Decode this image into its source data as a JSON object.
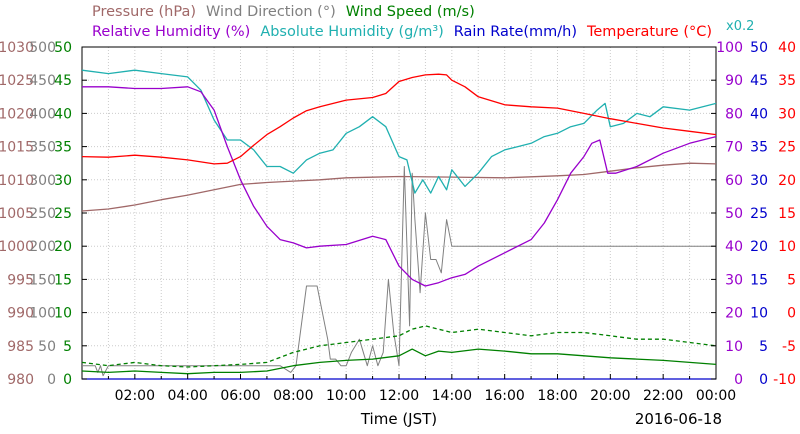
{
  "chart_data": {
    "type": "line",
    "date_label": "2016-06-18",
    "xlabel": "Time (JST)",
    "x_ticks": [
      "02:00",
      "04:00",
      "06:00",
      "08:00",
      "10:00",
      "12:00",
      "14:00",
      "16:00",
      "18:00",
      "20:00",
      "22:00",
      "00:00"
    ],
    "xlim_hours": [
      0,
      24
    ],
    "grid": true,
    "legend": {
      "row1": [
        {
          "key": "pressure",
          "label": "Pressure (hPa)",
          "color": "#a06868"
        },
        {
          "key": "wind_dir",
          "label": "Wind Direction (°)",
          "color": "#808080"
        },
        {
          "key": "wind_speed",
          "label": "Wind Speed (m/s)",
          "color": "#008000"
        }
      ],
      "row2": [
        {
          "key": "rh",
          "label": "Relative Humidity (%)",
          "color": "#9900cc"
        },
        {
          "key": "ah",
          "label": "Absolute Humidity (g/m³)",
          "color": "#20b0b0",
          "suffix": "x0.2"
        },
        {
          "key": "rain",
          "label": "Rain Rate(mm/h)",
          "color": "#0000cc"
        },
        {
          "key": "temp",
          "label": "Temperature (°C)",
          "color": "#ff0000"
        }
      ]
    },
    "axes": {
      "pressure": {
        "ticks": [
          "1030",
          "1025",
          "1020",
          "1015",
          "1010",
          "1005",
          "1000",
          "995",
          "990",
          "985",
          "980"
        ],
        "range": [
          980,
          1030
        ],
        "color": "#a06868"
      },
      "wind_dir": {
        "ticks": [
          "500",
          "450",
          "400",
          "350",
          "300",
          "250",
          "200",
          "150",
          "100",
          "50",
          "0"
        ],
        "range": [
          0,
          500
        ],
        "color": "#808080"
      },
      "wind_speed": {
        "ticks": [
          "50",
          "45",
          "40",
          "35",
          "30",
          "25",
          "20",
          "15",
          "10",
          "5",
          "0"
        ],
        "range": [
          0,
          50
        ],
        "color": "#008000"
      },
      "rh": {
        "ticks": [
          "100",
          "90",
          "80",
          "70",
          "60",
          "50",
          "40",
          "30",
          "20",
          "10",
          "0"
        ],
        "range": [
          0,
          100
        ],
        "color": "#9900cc"
      },
      "rain": {
        "ticks": [
          "50",
          "45",
          "40",
          "35",
          "30",
          "25",
          "20",
          "15",
          "10",
          "5",
          "0"
        ],
        "range": [
          0,
          50
        ],
        "color": "#0000cc"
      },
      "temp": {
        "ticks": [
          "40",
          "35",
          "30",
          "25",
          "20",
          "15",
          "10",
          "5",
          "0",
          "-5",
          "-10"
        ],
        "range": [
          -10,
          40
        ],
        "color": "#ff0000"
      }
    },
    "series": [
      {
        "key": "temp",
        "axis": "temp",
        "color": "#ff0000",
        "x": [
          0,
          1,
          2,
          3,
          4,
          5,
          5.5,
          6,
          6.5,
          7,
          7.5,
          8,
          8.5,
          9,
          10,
          11,
          11.5,
          12,
          12.5,
          13,
          13.5,
          13.8,
          14,
          14.5,
          15,
          16,
          17,
          18,
          19,
          20,
          21,
          22,
          23,
          24
        ],
        "y": [
          23.5,
          23.4,
          23.7,
          23.4,
          23.0,
          22.4,
          22.5,
          23.5,
          25.2,
          26.8,
          28.0,
          29.3,
          30.4,
          31.0,
          32.0,
          32.4,
          33.0,
          34.8,
          35.4,
          35.8,
          35.9,
          35.8,
          35.0,
          34.0,
          32.5,
          31.3,
          31.0,
          30.8,
          30.0,
          29.2,
          28.5,
          27.8,
          27.3,
          26.8
        ]
      },
      {
        "key": "rh",
        "axis": "rh",
        "color": "#9900cc",
        "x": [
          0,
          1,
          2,
          3,
          4,
          4.5,
          5,
          5.5,
          6,
          6.5,
          7,
          7.5,
          8,
          8.5,
          9,
          10,
          11,
          11.5,
          12,
          12.5,
          13,
          13.5,
          14,
          14.5,
          15,
          16,
          17,
          17.5,
          18,
          18.5,
          19,
          19.3,
          19.6,
          19.9,
          20.2,
          21,
          22,
          23,
          24
        ],
        "y": [
          88,
          88,
          87.5,
          87.5,
          88,
          86.5,
          81,
          70,
          60,
          52,
          46,
          42,
          41,
          39.5,
          40,
          40.5,
          43,
          42,
          34,
          30,
          28,
          29,
          30.5,
          31.5,
          34,
          38,
          42,
          47,
          54,
          62,
          67,
          71,
          72,
          62,
          62,
          64,
          68,
          71,
          73
        ]
      },
      {
        "key": "ah",
        "axis": "rh",
        "color": "#20b0b0",
        "x": [
          0,
          1,
          2,
          3,
          4,
          4.5,
          5,
          5.5,
          6,
          6.5,
          7,
          7.5,
          8,
          8.5,
          9,
          9.5,
          10,
          10.5,
          11,
          11.5,
          12,
          12.3,
          12.6,
          12.9,
          13.2,
          13.5,
          13.8,
          14,
          14.5,
          15,
          15.5,
          16,
          16.5,
          17,
          17.5,
          18,
          18.5,
          19,
          19.5,
          19.8,
          20,
          20.5,
          21,
          21.5,
          22,
          23,
          24
        ],
        "y": [
          93,
          92,
          93,
          92,
          91,
          87,
          78,
          72,
          72,
          69,
          64,
          64,
          62,
          66,
          68,
          69,
          74,
          76,
          79,
          76,
          67,
          66,
          56,
          60,
          56,
          61,
          57,
          63,
          58,
          62,
          67,
          69,
          70,
          71,
          73,
          74,
          76,
          77,
          81,
          83,
          76,
          77,
          80,
          79,
          82,
          81,
          83
        ]
      },
      {
        "key": "pressure",
        "axis": "pressure",
        "color": "#a06868",
        "x": [
          0,
          1,
          2,
          3,
          4,
          5,
          6,
          7,
          8,
          9,
          10,
          12,
          14,
          16,
          18,
          19,
          20,
          21,
          22,
          23,
          24
        ],
        "y": [
          1005.3,
          1005.6,
          1006.2,
          1007.0,
          1007.7,
          1008.5,
          1009.3,
          1009.6,
          1009.8,
          1010.0,
          1010.3,
          1010.5,
          1010.4,
          1010.3,
          1010.6,
          1010.8,
          1011.3,
          1011.8,
          1012.2,
          1012.5,
          1012.4
        ]
      },
      {
        "key": "wind_dir",
        "axis": "wind_dir",
        "color": "#808080",
        "x": [
          0,
          0.5,
          0.6,
          0.7,
          0.8,
          1,
          2,
          4,
          6,
          7.5,
          7.9,
          8.1,
          8.5,
          8.9,
          9.3,
          9.4,
          9.6,
          9.8,
          10.0,
          10.2,
          10.5,
          10.8,
          11.0,
          11.2,
          11.4,
          11.6,
          11.8,
          12.0,
          12.2,
          12.4,
          12.5,
          12.6,
          12.8,
          13.0,
          13.2,
          13.4,
          13.6,
          13.8,
          14.0,
          14.2,
          14.5,
          15.0,
          15.5,
          16.0,
          16.5,
          17.0,
          17.5,
          18.0,
          18.5,
          19.0,
          19.5,
          20.0,
          20.5,
          21.0,
          21.5,
          22.0,
          22.5,
          23.0,
          23.5,
          24
        ],
        "y": [
          20,
          20,
          10,
          20,
          5,
          20,
          20,
          20,
          20,
          20,
          10,
          20,
          140,
          140,
          60,
          30,
          30,
          20,
          20,
          40,
          60,
          20,
          50,
          20,
          40,
          150,
          70,
          20,
          320,
          80,
          310,
          240,
          130,
          250,
          180,
          180,
          160,
          240,
          200,
          200,
          200,
          200,
          200,
          200,
          200,
          200,
          200,
          200,
          200,
          200,
          200,
          200,
          200,
          200,
          200,
          200,
          200,
          200,
          200,
          200
        ]
      },
      {
        "key": "wind_speed",
        "axis": "wind_speed",
        "color": "#008000",
        "x": [
          0,
          1,
          2,
          3,
          4,
          5,
          6,
          7,
          8,
          9,
          10,
          11,
          12,
          12.5,
          13,
          13.5,
          14,
          15,
          16,
          17,
          18,
          19,
          20,
          21,
          22,
          23,
          24
        ],
        "y": [
          1.2,
          1.0,
          1.2,
          1.0,
          0.8,
          1.0,
          1.0,
          1.2,
          2.0,
          2.5,
          2.8,
          3.0,
          3.5,
          4.5,
          3.5,
          4.2,
          4.0,
          4.5,
          4.2,
          3.8,
          3.8,
          3.5,
          3.2,
          3.0,
          2.8,
          2.5,
          2.2
        ]
      },
      {
        "key": "wind_gust",
        "axis": "wind_speed",
        "color": "#008000",
        "dashed": true,
        "x": [
          0,
          1,
          2,
          3,
          4,
          5,
          6,
          7,
          8,
          9,
          10,
          11,
          12,
          12.5,
          13,
          13.5,
          14,
          15,
          16,
          17,
          18,
          19,
          20,
          21,
          22,
          23,
          24
        ],
        "y": [
          2.5,
          2.0,
          2.5,
          2.0,
          1.8,
          2.0,
          2.2,
          2.5,
          4.0,
          5.0,
          5.5,
          6.0,
          6.5,
          7.5,
          8.0,
          7.5,
          7.0,
          7.5,
          7.0,
          6.5,
          7.0,
          7.0,
          6.5,
          6.0,
          6.0,
          5.5,
          5.0
        ]
      },
      {
        "key": "rain",
        "axis": "rain",
        "color": "#0000cc",
        "x": [
          0,
          24
        ],
        "y": [
          0,
          0
        ]
      }
    ]
  }
}
